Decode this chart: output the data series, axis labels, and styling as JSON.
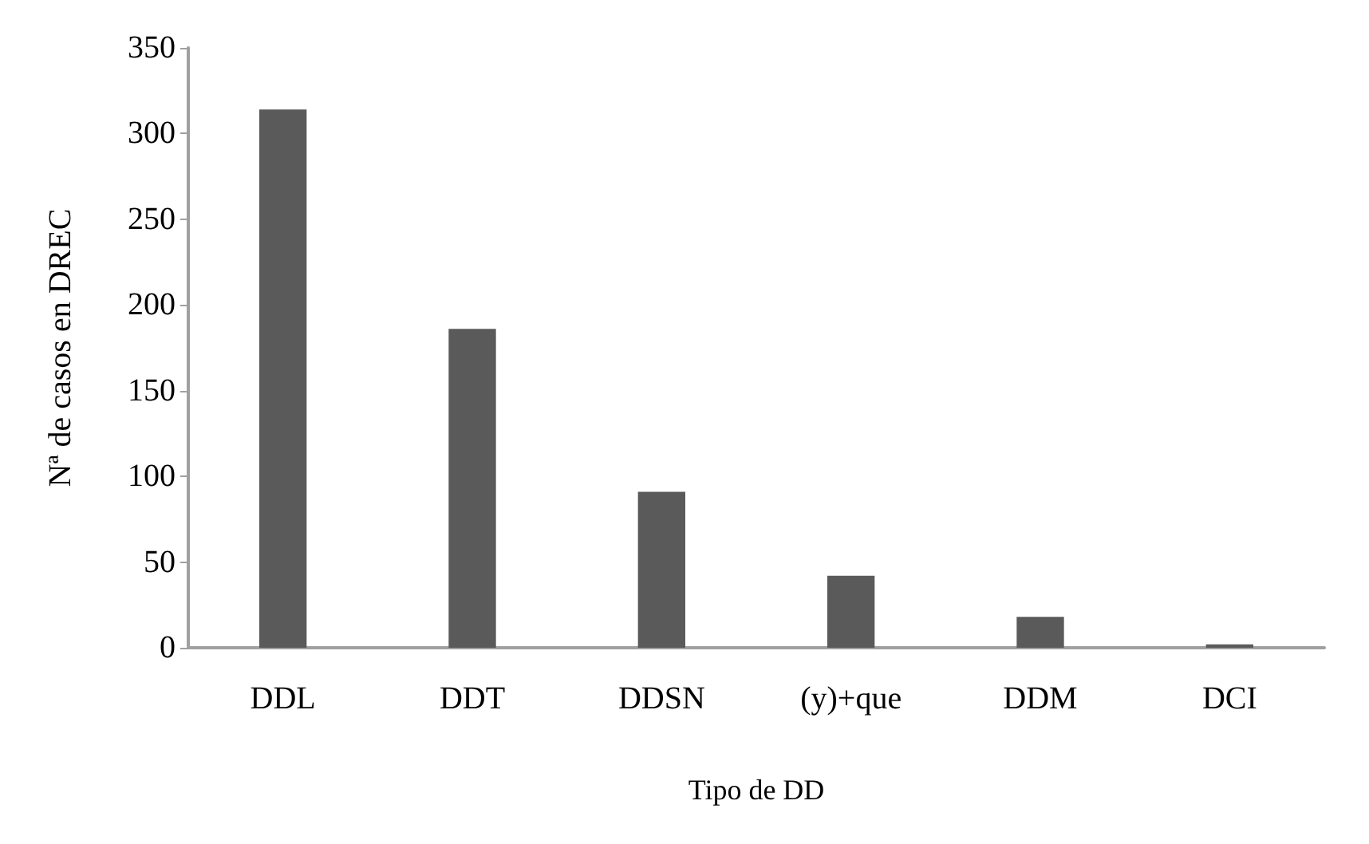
{
  "chart_data": {
    "type": "bar",
    "xlabel": "Tipo de DD",
    "ylabel": "Nª de casos en DREC",
    "categories": [
      "DDL",
      "DDT",
      "DDSN",
      "(y)+que",
      "DDM",
      "DCI"
    ],
    "values": [
      314,
      186,
      91,
      42,
      18,
      2
    ],
    "color": "#5a5a5a",
    "ylim": [
      0,
      350
    ],
    "yticks": [
      0,
      50,
      100,
      150,
      200,
      250,
      300,
      350
    ],
    "grid": false
  }
}
